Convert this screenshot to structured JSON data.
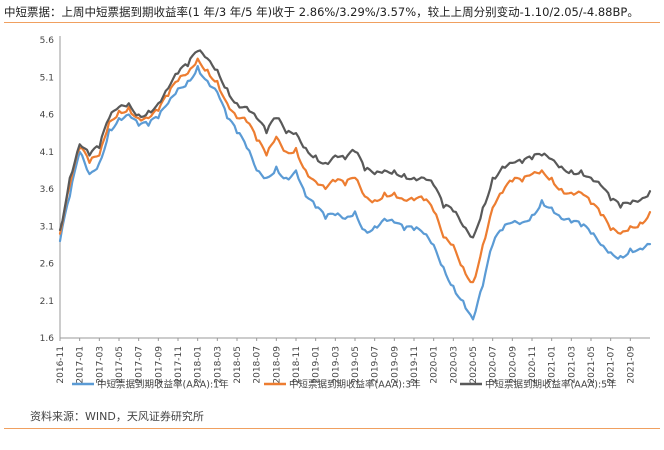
{
  "caption": "中短票据：上周中短票据到期收益率(1 年/3 年/5 年)收于 2.86%/3.29%/3.57%，较上上周分别变动-1.10/2.05/-4.88BP。",
  "source": "资料来源：WIND，天风证券研究所",
  "colors": {
    "s1": "#5b9bd5",
    "s3": "#ed7d31",
    "s5": "#595959",
    "axis": "#9a9a9a",
    "rule": "#f0a060"
  },
  "chart_data": {
    "type": "line",
    "title": "",
    "xlabel": "",
    "ylabel": "",
    "ylim": [
      1.6,
      5.6
    ],
    "yticks": [
      "5.6",
      "5.1",
      "4.6",
      "4.1",
      "3.6",
      "3.1",
      "2.6",
      "2.1",
      "1.6"
    ],
    "xticks": [
      "2016-11",
      "2017-01",
      "2017-03",
      "2017-05",
      "2017-07",
      "2017-09",
      "2017-11",
      "2018-01",
      "2018-03",
      "2018-05",
      "2018-07",
      "2018-09",
      "2018-11",
      "2019-01",
      "2019-03",
      "2019-05",
      "2019-07",
      "2019-09",
      "2019-11",
      "2020-01",
      "2020-03",
      "2020-05",
      "2020-07",
      "2020-09",
      "2020-11",
      "2021-01",
      "2021-03",
      "2021-05",
      "2021-07",
      "2021-09"
    ],
    "grid": false,
    "legend_position": "bottom",
    "x": [
      "2016-11",
      "2016-12",
      "2017-01",
      "2017-02",
      "2017-03",
      "2017-04",
      "2017-05",
      "2017-06",
      "2017-07",
      "2017-08",
      "2017-09",
      "2017-10",
      "2017-11",
      "2017-12",
      "2018-01",
      "2018-02",
      "2018-03",
      "2018-04",
      "2018-05",
      "2018-06",
      "2018-07",
      "2018-08",
      "2018-09",
      "2018-10",
      "2018-11",
      "2018-12",
      "2019-01",
      "2019-02",
      "2019-03",
      "2019-04",
      "2019-05",
      "2019-06",
      "2019-07",
      "2019-08",
      "2019-09",
      "2019-10",
      "2019-11",
      "2019-12",
      "2020-01",
      "2020-02",
      "2020-03",
      "2020-04",
      "2020-05",
      "2020-06",
      "2020-07",
      "2020-08",
      "2020-09",
      "2020-10",
      "2020-11",
      "2020-12",
      "2021-01",
      "2021-02",
      "2021-03",
      "2021-04",
      "2021-05",
      "2021-06",
      "2021-07",
      "2021-08",
      "2021-09",
      "2021-10",
      "2021-11"
    ],
    "series": [
      {
        "name": "中短票据到期收益率(AAA):1年",
        "values": [
          2.9,
          3.5,
          4.1,
          3.8,
          3.95,
          4.4,
          4.55,
          4.6,
          4.45,
          4.45,
          4.55,
          4.75,
          4.95,
          5.05,
          5.25,
          5.05,
          4.9,
          4.55,
          4.35,
          4.15,
          3.85,
          3.75,
          3.9,
          3.75,
          3.85,
          3.5,
          3.35,
          3.2,
          3.25,
          3.2,
          3.3,
          3.05,
          3.1,
          3.2,
          3.15,
          3.05,
          3.05,
          3.0,
          2.85,
          2.55,
          2.3,
          2.1,
          1.85,
          2.3,
          2.85,
          3.05,
          3.15,
          3.15,
          3.25,
          3.45,
          3.35,
          3.2,
          3.15,
          3.1,
          3.0,
          2.85,
          2.75,
          2.7,
          2.8,
          2.8,
          2.86
        ]
      },
      {
        "name": "中短票据到期收益率(AAA):3年",
        "values": [
          3.0,
          3.65,
          4.15,
          3.95,
          4.05,
          4.5,
          4.65,
          4.7,
          4.55,
          4.55,
          4.65,
          4.85,
          5.05,
          5.15,
          5.35,
          5.2,
          5.05,
          4.75,
          4.55,
          4.5,
          4.25,
          4.05,
          4.3,
          4.1,
          4.15,
          3.85,
          3.7,
          3.6,
          3.7,
          3.65,
          3.75,
          3.5,
          3.45,
          3.55,
          3.55,
          3.45,
          3.45,
          3.45,
          3.3,
          2.95,
          2.85,
          2.55,
          2.35,
          2.85,
          3.35,
          3.55,
          3.7,
          3.7,
          3.8,
          3.85,
          3.75,
          3.6,
          3.55,
          3.55,
          3.4,
          3.25,
          3.05,
          3.0,
          3.1,
          3.15,
          3.29
        ]
      },
      {
        "name": "中短票据到期收益率(AAA):5年",
        "values": [
          3.05,
          3.75,
          4.2,
          4.05,
          4.15,
          4.55,
          4.7,
          4.75,
          4.6,
          4.65,
          4.75,
          4.95,
          5.15,
          5.25,
          5.45,
          5.35,
          5.2,
          4.95,
          4.75,
          4.7,
          4.55,
          4.35,
          4.55,
          4.35,
          4.35,
          4.15,
          4.05,
          3.95,
          4.05,
          4.0,
          4.1,
          3.85,
          3.8,
          3.85,
          3.85,
          3.8,
          3.75,
          3.75,
          3.65,
          3.35,
          3.3,
          3.1,
          2.95,
          3.35,
          3.75,
          3.9,
          3.95,
          3.95,
          4.0,
          4.05,
          4.0,
          3.9,
          3.85,
          3.85,
          3.75,
          3.65,
          3.45,
          3.35,
          3.4,
          3.45,
          3.57
        ]
      }
    ]
  }
}
